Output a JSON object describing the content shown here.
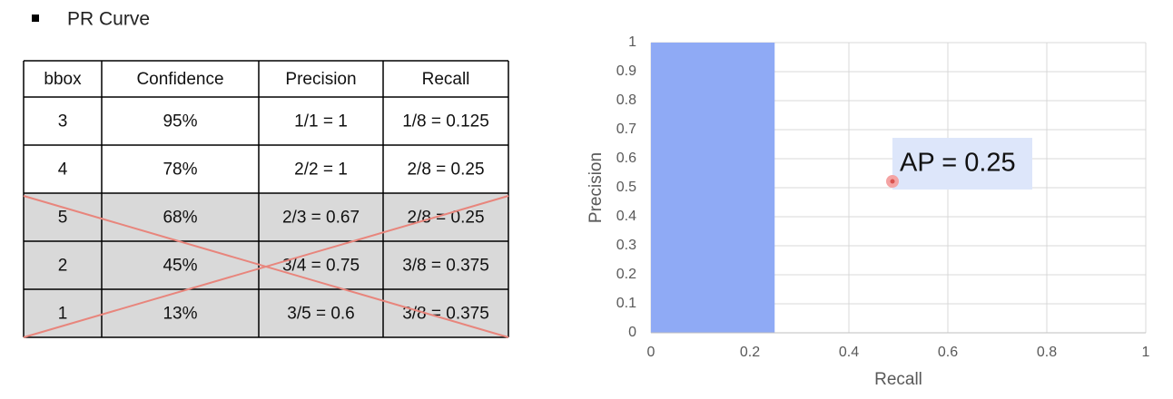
{
  "bullet": "PR Curve",
  "table": {
    "header": [
      "bbox",
      "Confidence",
      "Precision",
      "Recall"
    ],
    "rows": [
      [
        "3",
        "95%",
        "1/1 = 1",
        "1/8 = 0.125"
      ],
      [
        "4",
        "78%",
        "2/2 = 1",
        "2/8 = 0.25"
      ],
      [
        "5",
        "68%",
        "2/3 = 0.67",
        "2/8 = 0.25"
      ],
      [
        "2",
        "45%",
        "3/4 = 0.75",
        "3/8 = 0.375"
      ],
      [
        "1",
        "13%",
        "3/5 = 0.6",
        "3/8 = 0.375"
      ]
    ]
  },
  "chart_data": {
    "type": "area",
    "x_label": "Recall",
    "y_label": "Precision",
    "x": [
      0,
      0.25
    ],
    "values": [
      1,
      1
    ],
    "color": "#8faaf5",
    "xlim": [
      0,
      1
    ],
    "xticks": [
      0,
      0.2,
      0.4,
      0.6,
      0.8,
      1
    ],
    "ylim": [
      0,
      1
    ],
    "yticks": [
      0,
      0.1,
      0.2,
      0.3,
      0.4,
      0.5,
      0.6,
      0.7,
      0.8,
      0.9,
      1
    ],
    "grid": true,
    "annotation": "AP = 0.25"
  }
}
